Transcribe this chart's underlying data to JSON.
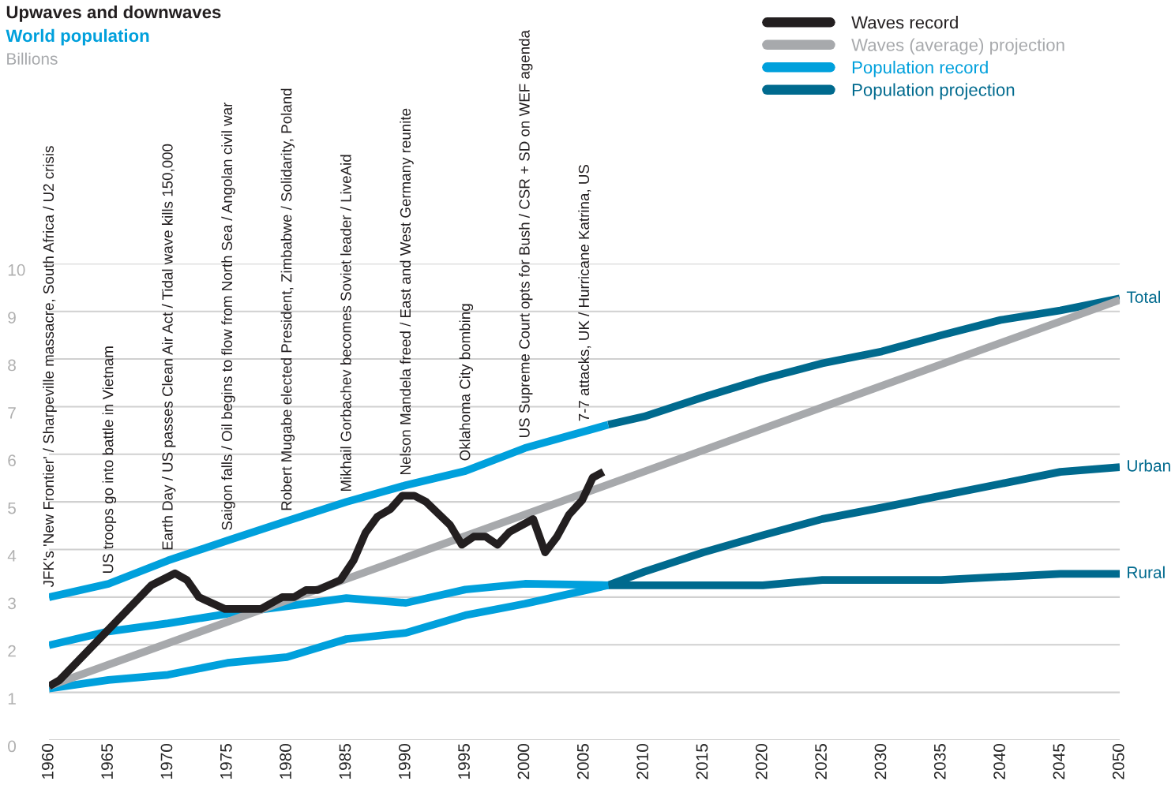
{
  "chart_data": {
    "type": "line",
    "title": "Upwaves and downwaves",
    "subtitle": "World population",
    "xlim": [
      1960,
      2050
    ],
    "xticks": [
      1960,
      1965,
      1970,
      1975,
      1980,
      1985,
      1990,
      1995,
      2000,
      2005,
      2010,
      2015,
      2020,
      2025,
      2030,
      2035,
      2040,
      2045,
      2050
    ],
    "ylim": [
      0,
      10
    ],
    "yticks": [
      0,
      1,
      2,
      3,
      4,
      5,
      6,
      7,
      8,
      9,
      10
    ],
    "grid": "y",
    "legend": "top right",
    "line_style": "solid",
    "marker": "none",
    "series": [
      {
        "name": "Waves record",
        "color": "#231f20",
        "x": [
          1960,
          1960.9,
          1968.6,
          1970.6,
          1971.6,
          1972.6,
          1974.8,
          1977.8,
          1979.6,
          1980.6,
          1981.6,
          1982.6,
          1984.5,
          1985.6,
          1986.6,
          1987.6,
          1988.7,
          1989.7,
          1990.7,
          1991.7,
          1993.7,
          1994.7,
          1995.7,
          1996.7,
          1997.7,
          1998.7,
          2000.7,
          2001.7,
          2002.7,
          2003.7,
          2004.8,
          2005.7,
          2006.6
        ],
        "values": [
          1.13,
          1.26,
          3.25,
          3.5,
          3.36,
          3.0,
          2.75,
          2.75,
          3.0,
          3.0,
          3.15,
          3.15,
          3.36,
          3.77,
          4.35,
          4.69,
          4.85,
          5.13,
          5.13,
          5.0,
          4.52,
          4.1,
          4.27,
          4.27,
          4.1,
          4.37,
          4.64,
          3.94,
          4.27,
          4.73,
          5.03,
          5.51,
          5.63
        ]
      },
      {
        "name": "Waves (average) projection",
        "color": "#a7a9ac",
        "x": [
          1960,
          2050
        ],
        "values": [
          1.13,
          9.24
        ]
      },
      {
        "color": "#00a0dc",
        "x": [
          1960,
          1965,
          1970,
          1975,
          1980,
          1985,
          1990,
          1995,
          2000,
          2007
        ],
        "values": [
          1.99,
          2.28,
          2.45,
          2.65,
          2.81,
          2.98,
          2.88,
          3.16,
          3.28,
          3.25
        ]
      },
      {
        "color": "#00a0dc",
        "x": [
          1960,
          1965,
          1970,
          1975,
          1980,
          1985,
          1990,
          1995,
          2000,
          2007
        ],
        "values": [
          1.08,
          1.26,
          1.37,
          1.62,
          1.74,
          2.12,
          2.25,
          2.62,
          2.86,
          3.25
        ]
      },
      {
        "name": "Population record",
        "color": "#00a0dc",
        "x": [
          1960,
          1965,
          1970,
          1975,
          1980,
          1985,
          1990,
          1995,
          2000,
          2007
        ],
        "values": [
          3.0,
          3.28,
          3.77,
          4.19,
          4.6,
          5.0,
          5.35,
          5.65,
          6.13,
          6.62
        ]
      },
      {
        "name": "Population projection",
        "color": "#006a8e",
        "x": [
          2007,
          2010,
          2015,
          2020,
          2025,
          2030,
          2035,
          2040,
          2045,
          2050
        ],
        "values": [
          6.62,
          6.79,
          7.2,
          7.58,
          7.91,
          8.16,
          8.5,
          8.82,
          9.02,
          9.27
        ]
      },
      {
        "color": "#006a8e",
        "x": [
          2007,
          2010,
          2015,
          2020,
          2025,
          2030,
          2035,
          2040,
          2045,
          2050
        ],
        "values": [
          3.25,
          3.53,
          3.94,
          4.3,
          4.64,
          4.88,
          5.13,
          5.38,
          5.63,
          5.73
        ]
      },
      {
        "color": "#006a8e",
        "x": [
          2007,
          2020,
          2025,
          2035,
          2045,
          2050
        ],
        "values": [
          3.25,
          3.25,
          3.36,
          3.36,
          3.49,
          3.49
        ]
      }
    ],
    "annotations": [
      "Billions",
      {
        "text": "JFK's 'New Frontier' / Sharpeville massacre, South Africa / U2 crisis",
        "x": 1960,
        "y": 3.0
      },
      {
        "text": "US troops go into battle in Vietnam",
        "x": 1965,
        "y": 3.28
      },
      {
        "text": "Earth Day / US passes Clean Air Act / Tidal wave kills 150,000",
        "x": 1970,
        "y": 3.77
      },
      {
        "text": "Saigon falls / Oil begins to flow from North Sea / Angolan civil war",
        "x": 1975,
        "y": 4.19
      },
      {
        "text": "Robert Mugabe elected President, Zimbabwe / Solidarity, Poland",
        "x": 1980,
        "y": 4.6
      },
      {
        "text": "Mikhail Gorbachev becomes Soviet leader / LiveAid",
        "x": 1985,
        "y": 5.0
      },
      {
        "text": "Nelson Mandela freed / East and West Germany reunite",
        "x": 1990,
        "y": 5.35
      },
      {
        "text": "Oklahoma City bombing",
        "x": 1995,
        "y": 5.65
      },
      {
        "text": "US Supreme Court opts for Bush / CSR + SD on WEF agenda",
        "x": 2000,
        "y": 6.13
      },
      {
        "text": "7-7 attacks, UK / Hurricane Katrina, US",
        "x": 2005,
        "y": 6.48
      },
      {
        "text": "Total",
        "x": 2050,
        "y": 9.27
      },
      {
        "text": "Urban",
        "x": 2050,
        "y": 5.73
      },
      {
        "text": "Rural",
        "x": 2050,
        "y": 3.49
      }
    ]
  }
}
